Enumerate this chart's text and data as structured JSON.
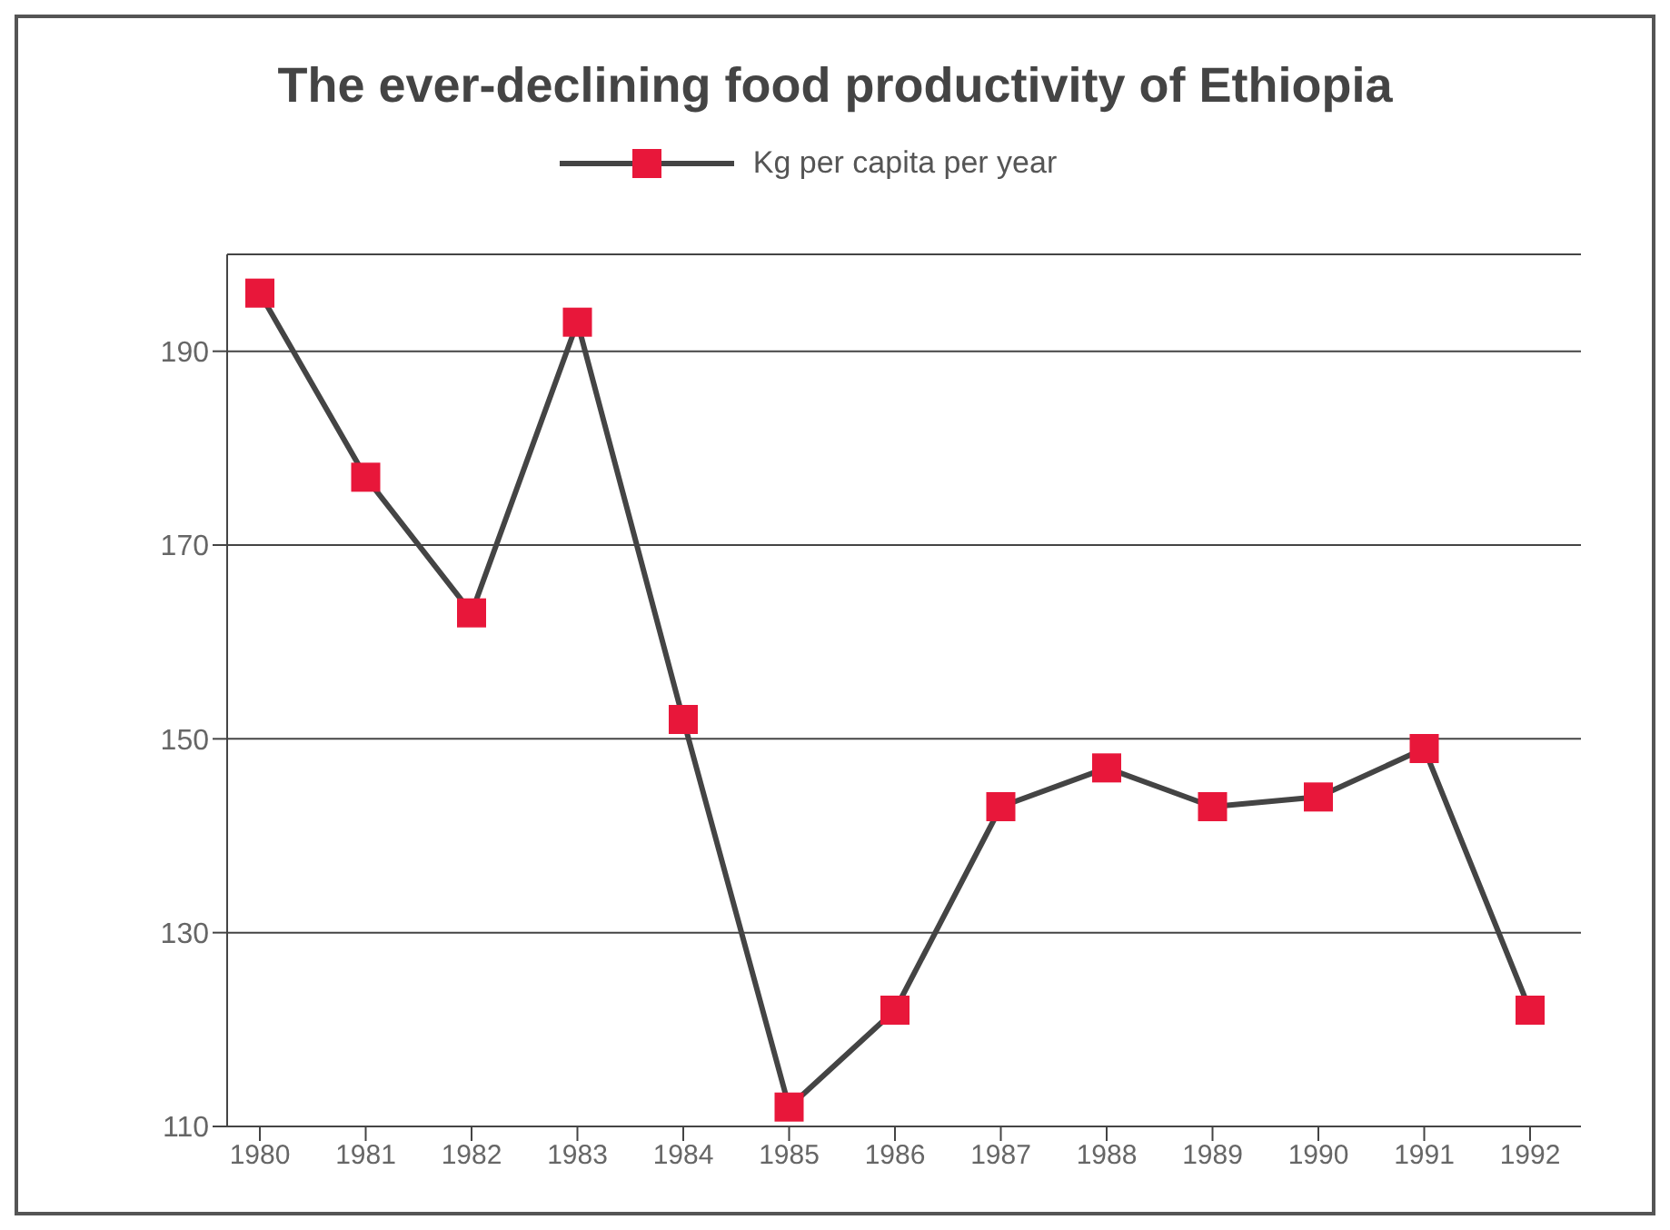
{
  "chart_data": {
    "type": "line",
    "title": "The ever-declining food productivity of Ethiopia",
    "categories": [
      "1980",
      "1981",
      "1982",
      "1983",
      "1984",
      "1985",
      "1986",
      "1987",
      "1988",
      "1989",
      "1990",
      "1991",
      "1992"
    ],
    "series": [
      {
        "name": "Kg per capita per year",
        "color": "#444444",
        "values": [
          196,
          177,
          163,
          193,
          152,
          112,
          122,
          143,
          147,
          143,
          144,
          149,
          122
        ]
      }
    ],
    "ylim": [
      110,
      200
    ],
    "yticks": [
      110,
      130,
      150,
      170,
      190
    ],
    "grid": "y",
    "legend": "top",
    "marker": "square",
    "line_style": "solid"
  }
}
